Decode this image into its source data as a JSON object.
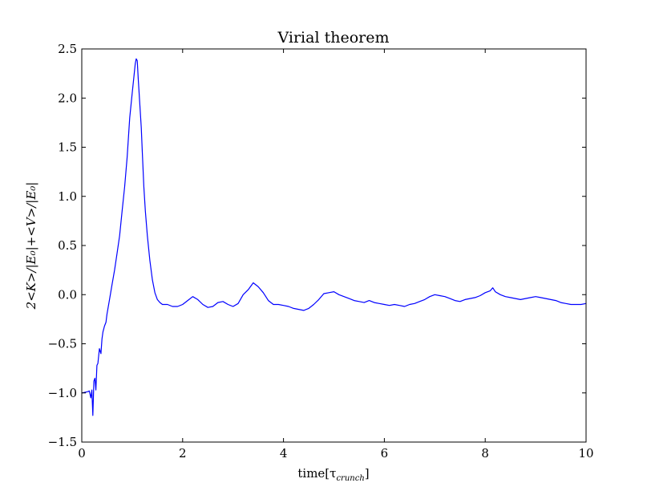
{
  "chart_data": {
    "type": "line",
    "title": "Virial theorem",
    "xlabel": "time[τ_crunch]",
    "xlabel_main": "time[τ",
    "xlabel_sub": "crunch",
    "xlabel_close": "]",
    "ylabel": "2<K>/|E₀|+<V>/|E₀|",
    "xlim": [
      0,
      10
    ],
    "ylim": [
      -1.5,
      2.5
    ],
    "xticks": [
      0,
      2,
      4,
      6,
      8,
      10
    ],
    "xtick_labels": [
      "0",
      "2",
      "4",
      "6",
      "8",
      "10"
    ],
    "yticks": [
      -1.5,
      -1.0,
      -0.5,
      0.0,
      0.5,
      1.0,
      1.5,
      2.0,
      2.5
    ],
    "ytick_labels": [
      "−1.5",
      "−1.0",
      "−0.5",
      "0.0",
      "0.5",
      "1.0",
      "1.5",
      "2.0",
      "2.5"
    ],
    "grid": false,
    "series": [
      {
        "color": "#0000ff",
        "x": [
          0.0,
          0.1,
          0.15,
          0.18,
          0.2,
          0.22,
          0.24,
          0.26,
          0.28,
          0.3,
          0.32,
          0.35,
          0.38,
          0.4,
          0.42,
          0.45,
          0.48,
          0.5,
          0.55,
          0.6,
          0.65,
          0.7,
          0.75,
          0.8,
          0.85,
          0.9,
          0.95,
          1.0,
          1.03,
          1.06,
          1.08,
          1.1,
          1.12,
          1.15,
          1.18,
          1.2,
          1.23,
          1.26,
          1.3,
          1.35,
          1.4,
          1.45,
          1.5,
          1.55,
          1.6,
          1.7,
          1.8,
          1.9,
          2.0,
          2.1,
          2.2,
          2.3,
          2.4,
          2.5,
          2.6,
          2.7,
          2.8,
          2.9,
          3.0,
          3.1,
          3.2,
          3.3,
          3.4,
          3.5,
          3.6,
          3.7,
          3.8,
          3.9,
          4.0,
          4.1,
          4.2,
          4.3,
          4.4,
          4.5,
          4.6,
          4.7,
          4.8,
          4.9,
          5.0,
          5.1,
          5.2,
          5.3,
          5.4,
          5.5,
          5.6,
          5.7,
          5.8,
          5.9,
          6.0,
          6.1,
          6.2,
          6.3,
          6.4,
          6.5,
          6.6,
          6.7,
          6.8,
          6.9,
          7.0,
          7.1,
          7.2,
          7.3,
          7.4,
          7.5,
          7.6,
          7.7,
          7.8,
          7.9,
          8.0,
          8.1,
          8.15,
          8.2,
          8.3,
          8.4,
          8.5,
          8.6,
          8.7,
          8.8,
          8.9,
          9.0,
          9.1,
          9.2,
          9.3,
          9.4,
          9.5,
          9.6,
          9.7,
          9.8,
          9.9,
          10.0
        ],
        "y": [
          -1.0,
          -0.99,
          -0.98,
          -1.05,
          -0.97,
          -1.23,
          -0.88,
          -0.85,
          -0.97,
          -0.72,
          -0.7,
          -0.55,
          -0.6,
          -0.45,
          -0.38,
          -0.32,
          -0.28,
          -0.2,
          -0.05,
          0.1,
          0.25,
          0.42,
          0.6,
          0.85,
          1.1,
          1.4,
          1.8,
          2.05,
          2.2,
          2.35,
          2.4,
          2.38,
          2.2,
          1.95,
          1.7,
          1.45,
          1.1,
          0.85,
          0.6,
          0.35,
          0.15,
          0.02,
          -0.05,
          -0.08,
          -0.1,
          -0.1,
          -0.12,
          -0.12,
          -0.1,
          -0.06,
          -0.02,
          -0.05,
          -0.1,
          -0.13,
          -0.12,
          -0.08,
          -0.07,
          -0.1,
          -0.12,
          -0.09,
          0.0,
          0.05,
          0.12,
          0.08,
          0.02,
          -0.06,
          -0.1,
          -0.1,
          -0.11,
          -0.12,
          -0.14,
          -0.15,
          -0.16,
          -0.14,
          -0.1,
          -0.05,
          0.01,
          0.02,
          0.03,
          0.0,
          -0.02,
          -0.04,
          -0.06,
          -0.07,
          -0.08,
          -0.06,
          -0.08,
          -0.09,
          -0.1,
          -0.11,
          -0.1,
          -0.11,
          -0.12,
          -0.1,
          -0.09,
          -0.07,
          -0.05,
          -0.02,
          0.0,
          -0.01,
          -0.02,
          -0.04,
          -0.06,
          -0.07,
          -0.05,
          -0.04,
          -0.03,
          -0.01,
          0.02,
          0.04,
          0.07,
          0.03,
          0.0,
          -0.02,
          -0.03,
          -0.04,
          -0.05,
          -0.04,
          -0.03,
          -0.02,
          -0.03,
          -0.04,
          -0.05,
          -0.06,
          -0.08,
          -0.09,
          -0.1,
          -0.1,
          -0.1,
          -0.09
        ]
      }
    ]
  }
}
